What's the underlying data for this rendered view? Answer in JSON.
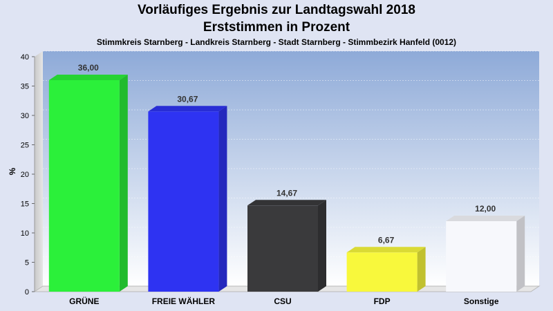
{
  "header": {
    "title_line1": "Vorläufiges Ergebnis zur Landtagswahl 2018",
    "title_line2": "Erststimmen in Prozent",
    "subtitle": "Stimmkreis Starnberg - Landkreis Starnberg - Stadt Starnberg - Stimmbezirk Hanfeld (0012)"
  },
  "chart_data": {
    "type": "bar",
    "title": "Vorläufiges Ergebnis zur Landtagswahl 2018 Erststimmen in Prozent",
    "subtitle": "Stimmkreis Starnberg - Landkreis Starnberg - Stadt Starnberg - Stimmbezirk Hanfeld (0012)",
    "categories": [
      "GRÜNE",
      "FREIE WÄHLER",
      "CSU",
      "FDP",
      "Sonstige"
    ],
    "values": [
      36.0,
      30.67,
      14.67,
      6.67,
      12.0
    ],
    "value_labels": [
      "36,00",
      "30,67",
      "14,67",
      "6,67",
      "12,00"
    ],
    "colors": [
      "#2bf03a",
      "#2e33f2",
      "#3a3a3c",
      "#f8f83c",
      "#f7f8fc"
    ],
    "xlabel": "",
    "ylabel": "%",
    "ylim": [
      0,
      40
    ],
    "yticks": [
      0,
      5,
      10,
      15,
      20,
      25,
      30,
      35,
      40
    ],
    "grid": true,
    "style": "3d"
  }
}
